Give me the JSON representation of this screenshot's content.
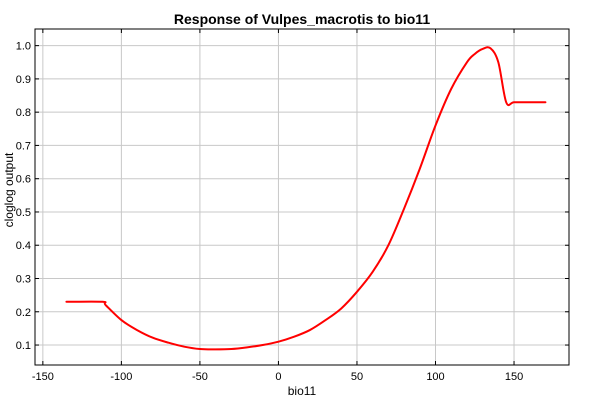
{
  "chart_data": {
    "type": "line",
    "title": "Response of Vulpes_macrotis to bio11",
    "xlabel": "bio11",
    "ylabel": "cloglog output",
    "xlim": [
      -155,
      185
    ],
    "ylim": [
      0.04,
      1.05
    ],
    "xticks": [
      -150,
      -100,
      -50,
      0,
      50,
      100,
      150
    ],
    "xtick_labels": [
      "-150",
      "-100",
      "-50",
      "0",
      "50",
      "100",
      "150"
    ],
    "yticks": [
      0.1,
      0.2,
      0.3,
      0.4,
      0.5,
      0.6,
      0.7,
      0.8,
      0.9,
      1.0
    ],
    "ytick_labels": [
      "0.1",
      "0.2",
      "0.3",
      "0.4",
      "0.5",
      "0.6",
      "0.7",
      "0.8",
      "0.9",
      "1.0"
    ],
    "grid": true,
    "series": [
      {
        "color": "#ff0000",
        "x": [
          -135,
          -112,
          -110,
          -100,
          -90,
          -80,
          -70,
          -60,
          -50,
          -40,
          -30,
          -20,
          -10,
          0,
          10,
          20,
          30,
          40,
          50,
          60,
          70,
          80,
          90,
          100,
          110,
          120,
          125,
          130,
          135,
          140,
          145,
          150,
          160,
          170
        ],
        "y": [
          0.23,
          0.23,
          0.22,
          0.175,
          0.145,
          0.122,
          0.107,
          0.095,
          0.088,
          0.087,
          0.088,
          0.093,
          0.1,
          0.11,
          0.125,
          0.145,
          0.175,
          0.21,
          0.26,
          0.32,
          0.4,
          0.51,
          0.63,
          0.76,
          0.87,
          0.95,
          0.975,
          0.99,
          0.992,
          0.95,
          0.83,
          0.83,
          0.83,
          0.83
        ]
      }
    ]
  }
}
